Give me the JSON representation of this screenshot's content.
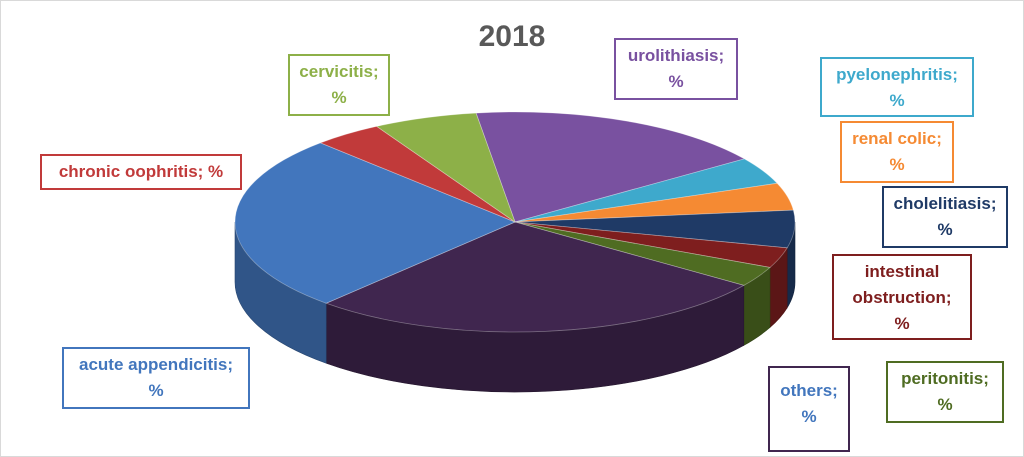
{
  "chart_data": {
    "type": "pie",
    "style": "3d",
    "title": "2018",
    "legend": "none",
    "slices": [
      {
        "label": "urolithiasis",
        "value_text": "%",
        "value": 17.5,
        "color": "#7951A0"
      },
      {
        "label": "pyelonephritis",
        "value_text": "%",
        "value": 4.0,
        "color": "#3EA9CC"
      },
      {
        "label": "renal colic",
        "value_text": "%",
        "value": 4.0,
        "color": "#F58A33"
      },
      {
        "label": "cholelitiasis",
        "value_text": "%",
        "value": 5.5,
        "color": "#1F3A66"
      },
      {
        "label": "intestinal obstruction",
        "value_text": "%",
        "value": 3.0,
        "color": "#7E1E1E"
      },
      {
        "label": "peritonitis",
        "value_text": "%",
        "value": 3.0,
        "color": "#4F6C22"
      },
      {
        "label": "others",
        "value_text": "%",
        "value": 27.0,
        "color": "#40264F"
      },
      {
        "label": "acute appendicitis",
        "value_text": "%",
        "value": 26.0,
        "color": "#4276BD"
      },
      {
        "label": "chronic oophritis",
        "value_text": "%",
        "value": 4.0,
        "color": "#C13A3A"
      },
      {
        "label": "cervicitis",
        "value_text": "%",
        "value": 6.0,
        "color": "#8DB048"
      }
    ]
  },
  "labels": {
    "urolithiasis": {
      "line1": "urolithiasis;",
      "line2": "%"
    },
    "pyelonephritis": {
      "line1": "pyelonephritis;",
      "line2": "%"
    },
    "renal_colic": {
      "line1": "renal colic;",
      "line2": "%"
    },
    "cholelitiasis": {
      "line1": "cholelitiasis;",
      "line2": "%"
    },
    "intestinal_obstruction": {
      "line1": "intestinal",
      "line2": "obstruction;",
      "line3": "%"
    },
    "peritonitis": {
      "line1": "peritonitis;",
      "line2": "%"
    },
    "others": {
      "line1": "others;",
      "line2": "%"
    },
    "acute_appendicitis": {
      "line1": "acute appendicitis;",
      "line2": "%"
    },
    "chronic_oophritis": {
      "line1": "chronic oophritis; %"
    },
    "cervicitis": {
      "line1": "cervicitis;",
      "line2": "%"
    }
  }
}
